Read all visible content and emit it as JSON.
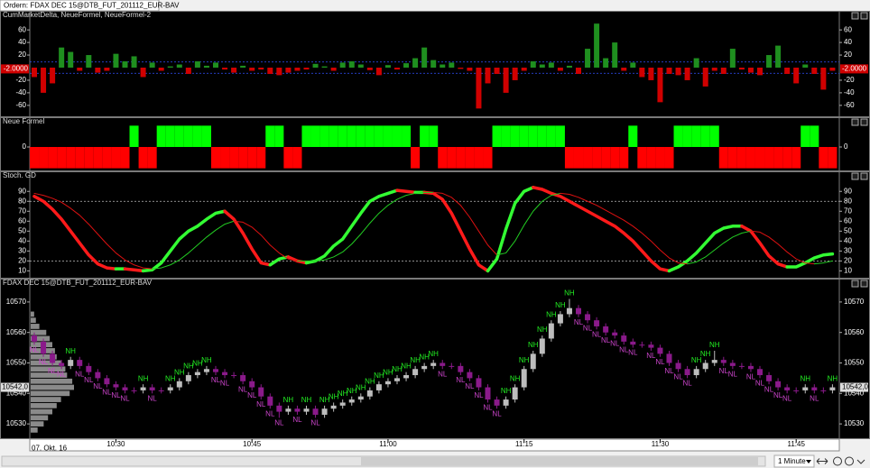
{
  "window": {
    "tab": "Ordern: FDAX DEC 15@DTB_FUT_201112_EUR-BAV"
  },
  "toolbar": {
    "timeframe": "1 Minute"
  },
  "chart_data": [
    {
      "type": "bar",
      "title": "CumMarketDelta, NeueFormel, NeueFormel-2",
      "up_color": "#1f8f1f",
      "down_color": "#d00000",
      "values": [
        -15,
        -40,
        -25,
        32,
        25,
        -5,
        20,
        -8,
        -5,
        22,
        10,
        18,
        -15,
        8,
        -5,
        2,
        5,
        -10,
        10,
        3,
        8,
        -3,
        -8,
        3,
        -5,
        -3,
        -10,
        -12,
        -8,
        -5,
        -3,
        6,
        2,
        -5,
        8,
        10,
        5,
        -4,
        -12,
        4,
        -3,
        7,
        15,
        32,
        12,
        5,
        8,
        -2,
        -5,
        -65,
        -25,
        -10,
        -40,
        -20,
        -5,
        10,
        5,
        8,
        -5,
        3,
        -10,
        30,
        70,
        15,
        40,
        -5,
        8,
        -15,
        -20,
        -55,
        -10,
        -12,
        -20,
        15,
        -30,
        -5,
        -10,
        30,
        -3,
        -8,
        -12,
        20,
        35,
        -10,
        -25,
        5,
        -10,
        -35,
        -5
      ],
      "ylim": [
        -76,
        76
      ],
      "yticks": [
        -60,
        -40,
        -20,
        20,
        40,
        60
      ],
      "ref_lines": [
        9,
        -9
      ],
      "ref_color": "#3050ff",
      "last": {
        "value": -2,
        "label": "-2.0000"
      }
    },
    {
      "type": "block",
      "title": "Neue Formel",
      "up_color": "#00ff00",
      "down_color": "#ff0000",
      "values": [
        -1,
        -1,
        -1,
        -1,
        -1,
        -1,
        -1,
        -1,
        -1,
        -1,
        -1,
        1,
        -1,
        -1,
        1,
        1,
        1,
        1,
        1,
        1,
        -1,
        -1,
        -1,
        -1,
        -1,
        -1,
        1,
        1,
        -1,
        -1,
        1,
        1,
        1,
        1,
        1,
        1,
        1,
        1,
        1,
        1,
        1,
        1,
        -1,
        1,
        1,
        -1,
        -1,
        -1,
        -1,
        -1,
        -1,
        1,
        1,
        1,
        1,
        1,
        1,
        1,
        1,
        -1,
        -1,
        -1,
        -1,
        -1,
        -1,
        -1,
        1,
        -1,
        -1,
        -1,
        -1,
        1,
        1,
        1,
        1,
        1,
        -1,
        -1,
        -1,
        -1,
        -1,
        -1,
        -1,
        -1,
        -1,
        1,
        1,
        -1,
        -1
      ],
      "ylim": [
        -1.1,
        1.1
      ],
      "yticks": [
        0
      ]
    },
    {
      "type": "line",
      "title": "Stoch. GD",
      "series": [
        {
          "up_color": "#33ff33",
          "down_color": "#ff1a1a",
          "width": 3.5,
          "values": [
            85,
            80,
            72,
            62,
            50,
            38,
            26,
            17,
            13,
            12,
            12,
            11,
            10,
            11,
            18,
            30,
            42,
            50,
            55,
            62,
            68,
            70,
            62,
            48,
            32,
            18,
            16,
            22,
            24,
            20,
            18,
            20,
            25,
            35,
            42,
            55,
            68,
            80,
            85,
            88,
            91,
            90,
            89,
            89,
            88,
            82,
            68,
            50,
            32,
            16,
            10,
            22,
            52,
            78,
            90,
            94,
            92,
            88,
            85,
            80,
            75,
            70,
            65,
            60,
            55,
            48,
            40,
            30,
            20,
            12,
            10,
            14,
            20,
            28,
            38,
            48,
            53,
            55,
            55,
            50,
            38,
            25,
            17,
            14,
            14,
            18,
            23,
            26,
            27
          ]
        },
        {
          "up_color": "#22cc22",
          "down_color": "#dd1111",
          "width": 1,
          "values": [
            88,
            86,
            83,
            79,
            73,
            66,
            57,
            47,
            37,
            28,
            21,
            16,
            13,
            12,
            13,
            16,
            21,
            28,
            36,
            44,
            51,
            57,
            60,
            59,
            54,
            46,
            36,
            28,
            22,
            20,
            20,
            20,
            21,
            24,
            29,
            37,
            47,
            58,
            68,
            76,
            82,
            86,
            88,
            89,
            89,
            88,
            84,
            76,
            64,
            50,
            36,
            26,
            28,
            40,
            56,
            70,
            80,
            86,
            88,
            87,
            84,
            80,
            76,
            71,
            66,
            61,
            55,
            48,
            40,
            31,
            23,
            18,
            17,
            19,
            24,
            31,
            38,
            44,
            48,
            50,
            49,
            44,
            37,
            29,
            22,
            18,
            17,
            18,
            20
          ]
        }
      ],
      "ylim": [
        4,
        102
      ],
      "yticks": [
        10,
        20,
        30,
        40,
        50,
        60,
        70,
        80,
        90
      ],
      "ref_lines": [
        80,
        20
      ],
      "ref_color": "#bbbbbb"
    },
    {
      "type": "candlestick",
      "title": "FDAX DEC 15@DTB_FUT_201112_EUR-BAV",
      "up_color": "#bdbdbd",
      "down_color": "#8a1a8a",
      "categories": [
        null,
        null,
        null,
        null,
        null,
        null,
        null,
        null,
        null,
        "10:30",
        null,
        null,
        null,
        null,
        null,
        null,
        null,
        null,
        null,
        null,
        null,
        null,
        null,
        null,
        "10:45",
        null,
        null,
        null,
        null,
        null,
        null,
        null,
        null,
        null,
        null,
        null,
        null,
        null,
        null,
        "11:00",
        null,
        null,
        null,
        null,
        null,
        null,
        null,
        null,
        null,
        null,
        null,
        null,
        null,
        null,
        "11:15",
        null,
        null,
        null,
        null,
        null,
        null,
        null,
        null,
        null,
        null,
        null,
        null,
        null,
        null,
        "11:30",
        null,
        null,
        null,
        null,
        null,
        null,
        null,
        null,
        null,
        null,
        null,
        null,
        null,
        null,
        "11:45",
        null,
        null,
        null,
        null
      ],
      "date_label": "07. Okt. 16",
      "open": [
        10559,
        10557,
        10553,
        10550,
        10549,
        10551,
        10549,
        10547,
        10545,
        10543,
        10542,
        10541,
        10541,
        10542,
        10541,
        10541,
        10542,
        10544,
        10546,
        10547,
        10548,
        10547,
        10546,
        10546,
        10544,
        10542,
        10539,
        10536,
        10534,
        10535,
        10534,
        10535,
        10533,
        10535,
        10536,
        10537,
        10538,
        10539,
        10541,
        10543,
        10544,
        10545,
        10546,
        10548,
        10549,
        10550,
        10549,
        10549,
        10547,
        10545,
        10542,
        10538,
        10536,
        10538,
        10542,
        10548,
        10553,
        10558,
        10563,
        10566,
        10568,
        10566,
        10564,
        10562,
        10560,
        10559,
        10557,
        10556,
        10556,
        10555,
        10553,
        10550,
        10548,
        10546,
        10548,
        10550,
        10551,
        10550,
        10549,
        10549,
        10548,
        10546,
        10544,
        10542,
        10541,
        10541,
        10542,
        10541,
        10541
      ],
      "high": [
        10560,
        10558,
        10554,
        10551,
        10552,
        10552,
        10550,
        10548,
        10546,
        10544,
        10543,
        10542,
        10543,
        10543,
        10542,
        10543,
        10545,
        10547,
        10548,
        10549,
        10549,
        10548,
        10547,
        10547,
        10545,
        10543,
        10540,
        10537,
        10536,
        10536,
        10536,
        10536,
        10536,
        10537,
        10538,
        10539,
        10540,
        10542,
        10544,
        10545,
        10546,
        10547,
        10549,
        10550,
        10551,
        10551,
        10550,
        10550,
        10548,
        10546,
        10543,
        10539,
        10539,
        10543,
        10549,
        10554,
        10559,
        10564,
        10567,
        10571,
        10569,
        10567,
        10565,
        10563,
        10561,
        10560,
        10558,
        10557,
        10557,
        10556,
        10554,
        10551,
        10549,
        10549,
        10551,
        10554,
        10552,
        10551,
        10550,
        10550,
        10549,
        10547,
        10545,
        10543,
        10542,
        10543,
        10543,
        10542,
        10543
      ],
      "low": [
        10556,
        10552,
        10549,
        10548,
        10548,
        10548,
        10546,
        10544,
        10542,
        10541,
        10540,
        10540,
        10540,
        10540,
        10540,
        10540,
        10541,
        10543,
        10545,
        10546,
        10546,
        10545,
        10545,
        10543,
        10541,
        10538,
        10535,
        10532,
        10533,
        10533,
        10533,
        10532,
        10532,
        10534,
        10535,
        10536,
        10537,
        10538,
        10540,
        10542,
        10543,
        10544,
        10545,
        10547,
        10548,
        10548,
        10548,
        10546,
        10544,
        10541,
        10537,
        10535,
        10535,
        10537,
        10541,
        10547,
        10552,
        10557,
        10562,
        10565,
        10565,
        10563,
        10561,
        10559,
        10558,
        10556,
        10555,
        10555,
        10554,
        10552,
        10549,
        10547,
        10545,
        10545,
        10547,
        10549,
        10549,
        10548,
        10548,
        10547,
        10545,
        10543,
        10541,
        10540,
        10540,
        10540,
        10540,
        10540,
        10540
      ],
      "close": [
        10557,
        10553,
        10550,
        10549,
        10551,
        10549,
        10547,
        10545,
        10543,
        10542,
        10541,
        10541,
        10542,
        10541,
        10541,
        10542,
        10544,
        10546,
        10547,
        10548,
        10547,
        10546,
        10546,
        10544,
        10542,
        10539,
        10536,
        10534,
        10535,
        10534,
        10535,
        10533,
        10535,
        10536,
        10537,
        10538,
        10539,
        10541,
        10543,
        10544,
        10545,
        10546,
        10548,
        10549,
        10550,
        10549,
        10549,
        10547,
        10545,
        10542,
        10538,
        10536,
        10538,
        10542,
        10548,
        10553,
        10558,
        10563,
        10566,
        10568,
        10566,
        10564,
        10562,
        10560,
        10559,
        10557,
        10556,
        10556,
        10555,
        10553,
        10550,
        10548,
        10546,
        10548,
        10550,
        10551,
        10550,
        10549,
        10549,
        10548,
        10546,
        10544,
        10542,
        10541,
        10541,
        10542,
        10541,
        10541,
        10542
      ],
      "signals": [
        "NL",
        "NL",
        "NL",
        "NL",
        "NH",
        "NL",
        "NL",
        "NL",
        "NL",
        "NL",
        "NL",
        null,
        "NH",
        "NL",
        null,
        "NH",
        "NH",
        "NH",
        "NH",
        "NH",
        "NL",
        "NL",
        null,
        "NL",
        "NL",
        "NL",
        "NL",
        "NL",
        "NH",
        "NL",
        "NH",
        "NL",
        "NH",
        "NH",
        "NH",
        "NH",
        "NH",
        "NH",
        "NH",
        "NH",
        "NH",
        "NH",
        "NH",
        "NH",
        "NH",
        "NL",
        null,
        "NL",
        "NL",
        "NL",
        "NL",
        "NL",
        "NH",
        "NH",
        "NH",
        "NH",
        "NH",
        "NH",
        "NH",
        "NH",
        "NL",
        "NL",
        "NL",
        "NL",
        "NL",
        "NL",
        "NL",
        null,
        "NL",
        "NL",
        "NL",
        "NL",
        "NL",
        "NH",
        "NH",
        "NH",
        "NL",
        "NL",
        null,
        "NL",
        "NL",
        "NL",
        "NL",
        "NL",
        null,
        "NH",
        "NL",
        null,
        "NH"
      ],
      "signal_colors": {
        "NH": "#22ee22",
        "NL": "#cc44cc"
      },
      "profile": {
        "color": "#8a8a8a",
        "prices": [
          10528,
          10530,
          10532,
          10534,
          10536,
          10538,
          10540,
          10542,
          10544,
          10546,
          10548,
          10550,
          10552,
          10554,
          10556,
          10558,
          10560,
          10562,
          10564,
          10566
        ],
        "values": [
          8,
          15,
          20,
          25,
          30,
          35,
          45,
          50,
          48,
          42,
          40,
          35,
          30,
          28,
          25,
          22,
          18,
          10,
          6,
          4
        ]
      },
      "ylim": [
        10525,
        10575
      ],
      "yticks": [
        10530,
        10540,
        10550,
        10560,
        10570
      ],
      "last": {
        "value": 10542,
        "label": "10542,0"
      }
    }
  ]
}
